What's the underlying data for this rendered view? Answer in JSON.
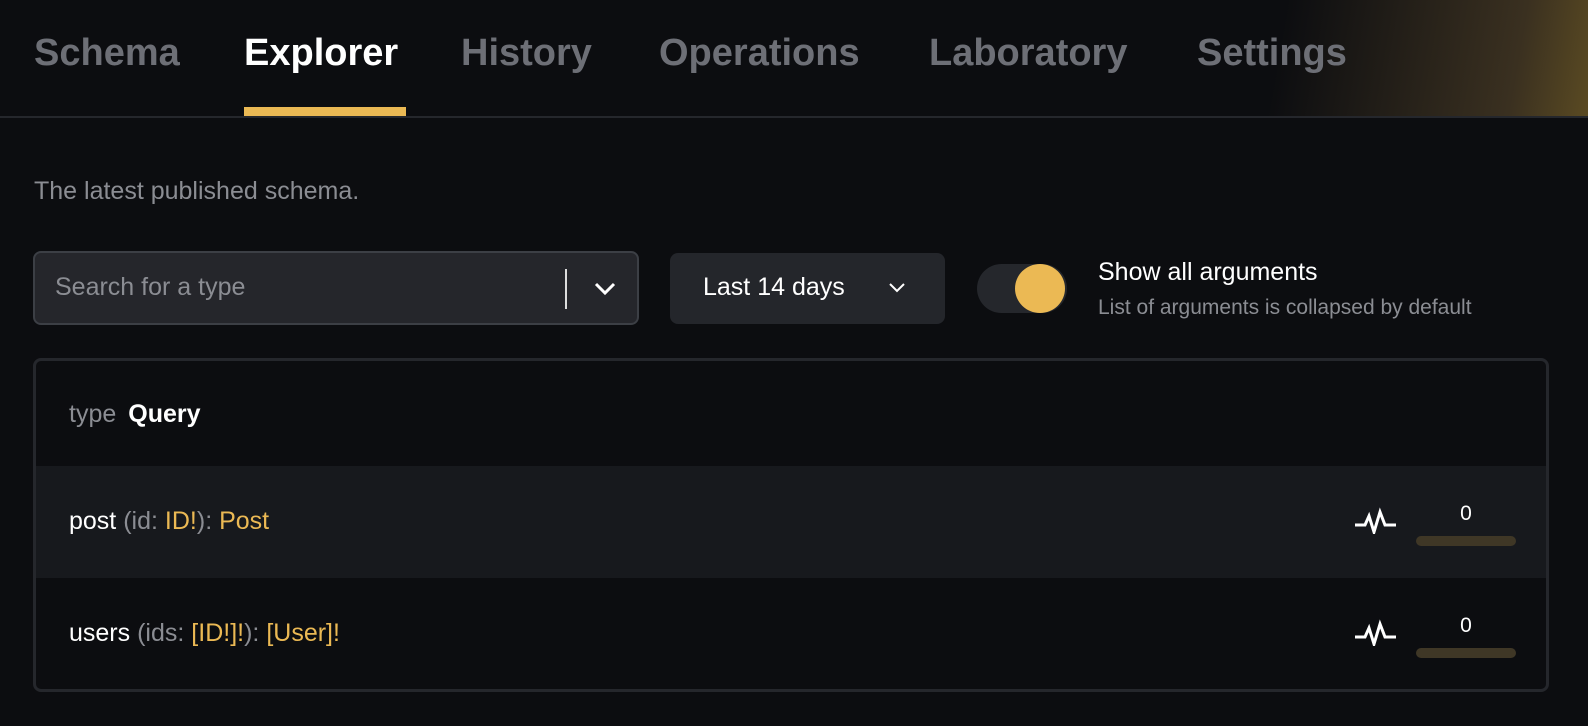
{
  "tabs": [
    {
      "label": "Schema"
    },
    {
      "label": "Explorer",
      "active": true
    },
    {
      "label": "History"
    },
    {
      "label": "Operations"
    },
    {
      "label": "Laboratory"
    },
    {
      "label": "Settings"
    }
  ],
  "description": "The latest published schema.",
  "search": {
    "placeholder": "Search for a type",
    "value": ""
  },
  "period": {
    "selected": "Last 14 days"
  },
  "toggle": {
    "label": "Show all arguments",
    "hint": "List of arguments is collapsed by default",
    "on": true
  },
  "type": {
    "keyword": "type",
    "name": "Query"
  },
  "fields": [
    {
      "name": "post",
      "arg": "id",
      "arg_type": "ID!",
      "return_type": "Post",
      "count": "0",
      "usage": 0
    },
    {
      "name": "users",
      "arg": "ids",
      "arg_type": "[ID!]!",
      "return_type": "[User]!",
      "count": "0",
      "usage": 0
    }
  ],
  "colors": {
    "accent": "#ebb954",
    "background": "#0c0d10"
  }
}
